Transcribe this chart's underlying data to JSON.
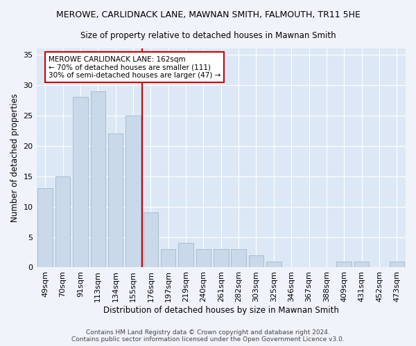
{
  "title": "MEROWE, CARLIDNACK LANE, MAWNAN SMITH, FALMOUTH, TR11 5HE",
  "subtitle": "Size of property relative to detached houses in Mawnan Smith",
  "xlabel": "Distribution of detached houses by size in Mawnan Smith",
  "ylabel": "Number of detached properties",
  "categories": [
    "49sqm",
    "70sqm",
    "91sqm",
    "113sqm",
    "134sqm",
    "155sqm",
    "176sqm",
    "197sqm",
    "219sqm",
    "240sqm",
    "261sqm",
    "282sqm",
    "303sqm",
    "325sqm",
    "346sqm",
    "367sqm",
    "388sqm",
    "409sqm",
    "431sqm",
    "452sqm",
    "473sqm"
  ],
  "values": [
    13,
    15,
    28,
    29,
    22,
    25,
    9,
    3,
    4,
    3,
    3,
    3,
    2,
    1,
    0,
    0,
    0,
    1,
    1,
    0,
    1
  ],
  "bar_color": "#c9d9ea",
  "bar_edge_color": "#aabcce",
  "vline_color": "#cc0000",
  "annotation_text": "MEROWE CARLIDNACK LANE: 162sqm\n← 70% of detached houses are smaller (111)\n30% of semi-detached houses are larger (47) →",
  "annotation_box_color": "#ffffff",
  "annotation_box_edge_color": "#cc0000",
  "ylim": [
    0,
    36
  ],
  "yticks": [
    0,
    5,
    10,
    15,
    20,
    25,
    30,
    35
  ],
  "footer": "Contains HM Land Registry data © Crown copyright and database right 2024.\nContains public sector information licensed under the Open Government Licence v3.0.",
  "fig_bg_color": "#f0f4fa",
  "plot_bg_color": "#dce8f5"
}
